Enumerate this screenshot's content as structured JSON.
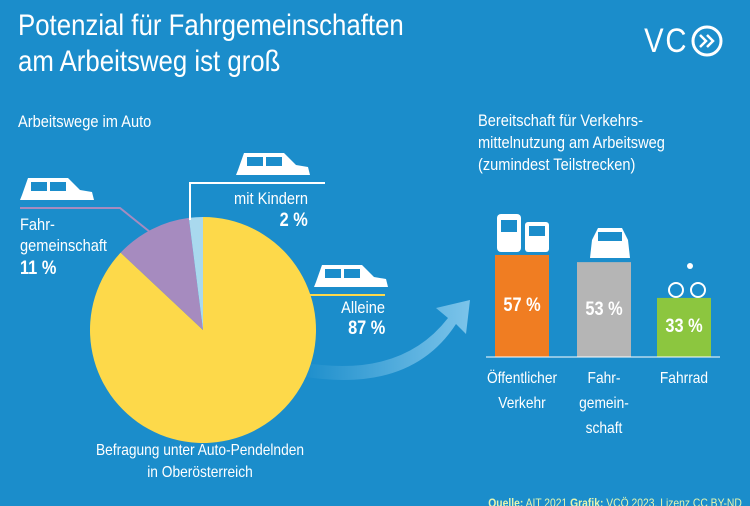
{
  "header": {
    "title": "Potenzial für Fahrgemeinschaften\nam Arbeitsweg ist groß",
    "logo": "VC"
  },
  "chart_data": [
    {
      "type": "pie",
      "title": "Arbeitswege im Auto",
      "categories": [
        "Alleine",
        "Fahr-\ngemeinschaft",
        "mit Kindern"
      ],
      "values": [
        87,
        11,
        2
      ],
      "value_labels": [
        "87 %",
        "11 %",
        "2 %"
      ],
      "colors": [
        "#fdd94a",
        "#a68bbf",
        "#a9d9ee"
      ],
      "caption": "Befragung unter Auto-Pendelnden\nin Oberösterreich"
    },
    {
      "type": "bar",
      "title": "Bereitschaft für Verkehrs-\nmittelnutzung am Arbeitsweg\n(zumindest Teilstrecken)",
      "categories": [
        "Öffentlicher\nVerkehr",
        "Fahr-\ngemein-\nschaft",
        "Fahrrad"
      ],
      "values": [
        57,
        53,
        33
      ],
      "value_labels": [
        "57 %",
        "53 %",
        "33 %"
      ],
      "colors": [
        "#f07d22",
        "#b5b5b5",
        "#8cc63f"
      ]
    }
  ],
  "footer": {
    "source_label": "Quelle:",
    "source": "AIT 2021",
    "credit_label": "Grafik:",
    "credit": "VCÖ 2023, Lizenz CC BY-ND"
  }
}
